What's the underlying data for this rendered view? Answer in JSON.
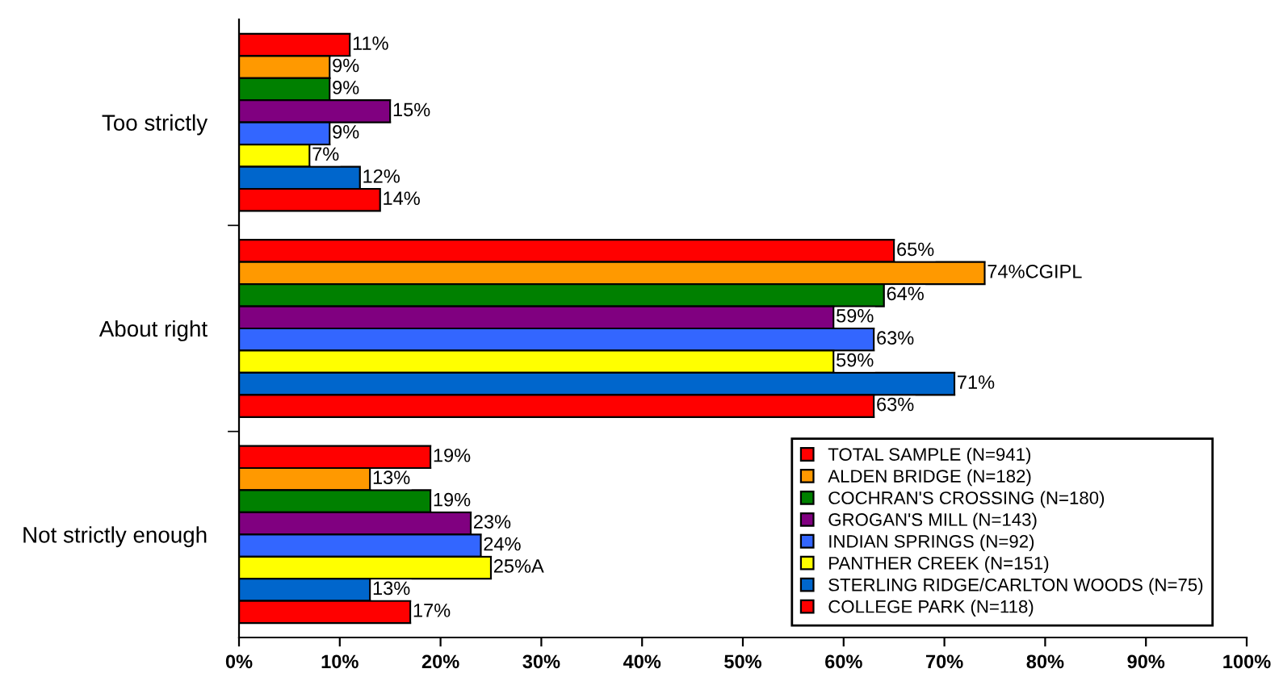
{
  "chart_data": {
    "type": "bar",
    "orientation": "horizontal",
    "categories": [
      "Too strictly",
      "About right",
      "Not strictly enough"
    ],
    "series": [
      {
        "name": "TOTAL SAMPLE (N=941)",
        "color": "#ff0000",
        "values": [
          11,
          65,
          19
        ],
        "value_labels": [
          "11%",
          "65%",
          "19%"
        ]
      },
      {
        "name": "ALDEN BRIDGE (N=182)",
        "color": "#ff9900",
        "values": [
          9,
          74,
          13
        ],
        "value_labels": [
          "9%",
          "74%CGIPL",
          "13%"
        ]
      },
      {
        "name": "COCHRAN'S CROSSING (N=180)",
        "color": "#008000",
        "values": [
          9,
          64,
          19
        ],
        "value_labels": [
          "9%",
          "64%",
          "19%"
        ]
      },
      {
        "name": "GROGAN'S MILL (N=143)",
        "color": "#800080",
        "values": [
          15,
          59,
          23
        ],
        "value_labels": [
          "15%",
          "59%",
          "23%"
        ]
      },
      {
        "name": "INDIAN SPRINGS (N=92)",
        "color": "#3366ff",
        "values": [
          9,
          63,
          24
        ],
        "value_labels": [
          "9%",
          "63%",
          "24%"
        ]
      },
      {
        "name": "PANTHER CREEK (N=151)",
        "color": "#ffff00",
        "values": [
          7,
          59,
          25
        ],
        "value_labels": [
          "7%",
          "59%",
          "25%A"
        ]
      },
      {
        "name": "STERLING RIDGE/CARLTON WOODS (N=75)",
        "color": "#0066cc",
        "values": [
          12,
          71,
          13
        ],
        "value_labels": [
          "12%",
          "71%",
          "13%"
        ]
      },
      {
        "name": "COLLEGE PARK (N=118)",
        "color": "#ff0000",
        "values": [
          14,
          63,
          17
        ],
        "value_labels": [
          "14%",
          "63%",
          "17%"
        ]
      }
    ],
    "xlim": [
      0,
      100
    ],
    "xticks": [
      {
        "value": 0,
        "label": "0%"
      },
      {
        "value": 10,
        "label": "10%"
      },
      {
        "value": 20,
        "label": "20%"
      },
      {
        "value": 30,
        "label": "30%"
      },
      {
        "value": 40,
        "label": "40%"
      },
      {
        "value": 50,
        "label": "50%"
      },
      {
        "value": 60,
        "label": "60%"
      },
      {
        "value": 70,
        "label": "70%"
      },
      {
        "value": 80,
        "label": "80%"
      },
      {
        "value": 90,
        "label": "90%"
      },
      {
        "value": 100,
        "label": "100%"
      }
    ],
    "legend": "bottom right"
  }
}
